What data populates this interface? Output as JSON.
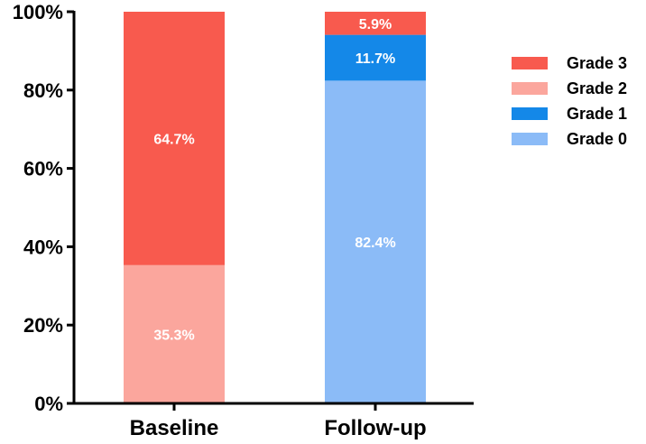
{
  "chart_data": {
    "type": "bar",
    "stacked": true,
    "categories": [
      "Baseline",
      "Follow-up"
    ],
    "series": [
      {
        "name": "Grade 0",
        "color": "#8BBBF7",
        "values": [
          0,
          82.4
        ],
        "labels": [
          "",
          "82.4%"
        ]
      },
      {
        "name": "Grade 1",
        "color": "#1488E8",
        "values": [
          0,
          11.7
        ],
        "labels": [
          "",
          "11.7%"
        ]
      },
      {
        "name": "Grade 2",
        "color": "#FBA69D",
        "values": [
          35.3,
          0
        ],
        "labels": [
          "35.3%",
          ""
        ]
      },
      {
        "name": "Grade 3",
        "color": "#F85A4E",
        "values": [
          64.7,
          5.9
        ],
        "labels": [
          "64.7%",
          "5.9%"
        ]
      }
    ],
    "ylim": [
      0,
      100
    ],
    "yticks": [
      "0%",
      "20%",
      "40%",
      "60%",
      "80%",
      "100%"
    ],
    "legend_order": [
      "Grade 3",
      "Grade 2",
      "Grade 1",
      "Grade 0"
    ],
    "legend_position": "right",
    "grid": false,
    "title": "",
    "xlabel": "",
    "ylabel": ""
  }
}
